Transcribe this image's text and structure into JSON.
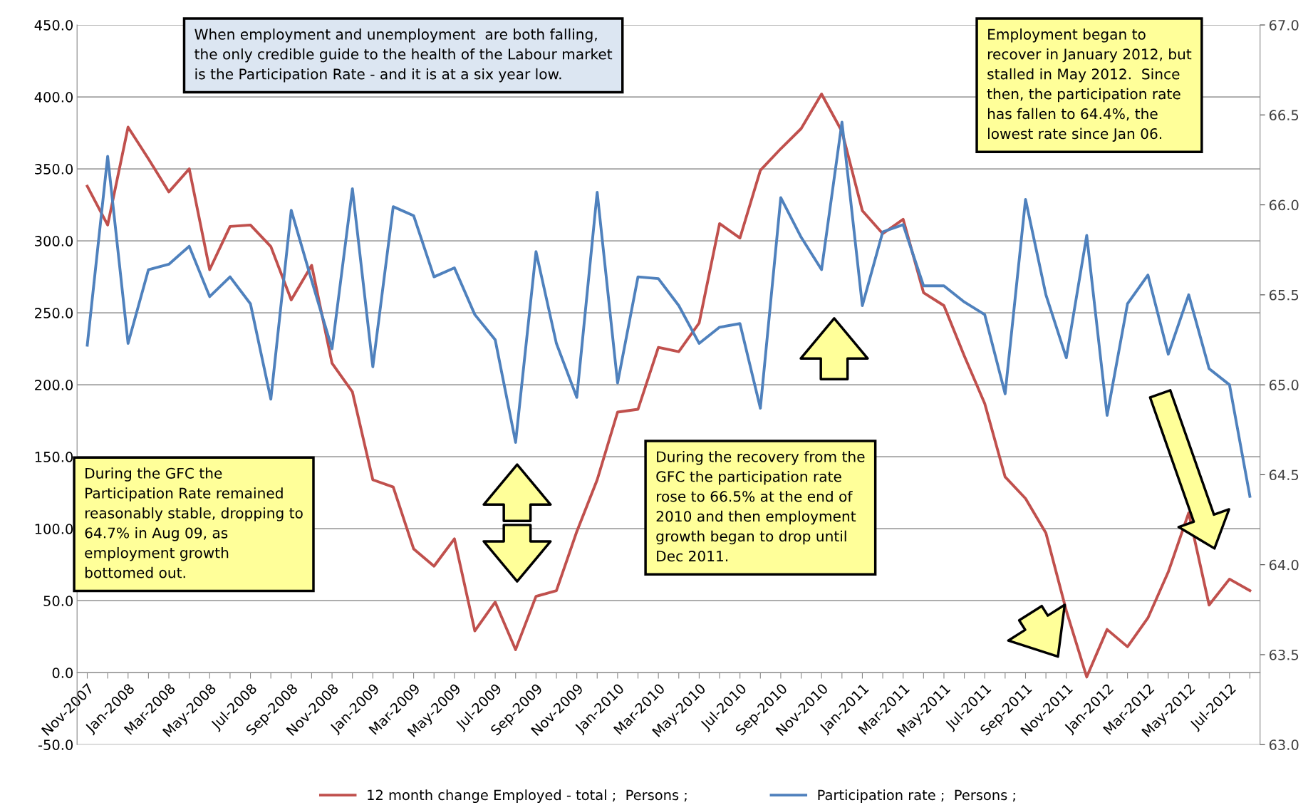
{
  "chart_data": {
    "type": "line",
    "categories": [
      "Nov-2007",
      null,
      "Jan-2008",
      null,
      "Mar-2008",
      null,
      "May-2008",
      null,
      "Jul-2008",
      null,
      "Sep-2008",
      null,
      "Nov-2008",
      null,
      "Jan-2009",
      null,
      "Mar-2009",
      null,
      "May-2009",
      null,
      "Jul-2009",
      null,
      "Sep-2009",
      null,
      "Nov-2009",
      null,
      "Jan-2010",
      null,
      "Mar-2010",
      null,
      "May-2010",
      null,
      "Jul-2010",
      null,
      "Sep-2010",
      null,
      "Nov-2010",
      null,
      "Jan-2011",
      null,
      "Mar-2011",
      null,
      "May-2011",
      null,
      "Jul-2011",
      null,
      "Sep-2011",
      null,
      "Nov-2011",
      null,
      "Jan-2012",
      null,
      "Mar-2012",
      null,
      "May-2012",
      null,
      "Jul-2012",
      null
    ],
    "series": [
      {
        "name": "12 month change Employed - total ;  Persons ;",
        "color": "#c0504d",
        "values": [
          338,
          311,
          379,
          357,
          334,
          350,
          280,
          310,
          311,
          296,
          259,
          283,
          215,
          195,
          134,
          129,
          86,
          74,
          93,
          29,
          49,
          16,
          53,
          57,
          98,
          134,
          181,
          183,
          226,
          223,
          243,
          312,
          302,
          349,
          364,
          378,
          402,
          376,
          321,
          305,
          315,
          264,
          255,
          220,
          187,
          136,
          121,
          97,
          43,
          -3,
          30,
          18,
          38,
          70,
          111,
          47,
          65,
          57
        ]
      },
      {
        "name": "Participation rate ;  Persons ;",
        "color": "#4f81bd",
        "axis": "y2",
        "values": [
          65.22,
          66.27,
          65.23,
          65.64,
          65.67,
          65.77,
          65.49,
          65.6,
          65.45,
          64.92,
          65.97,
          65.58,
          65.2,
          66.09,
          65.1,
          65.99,
          65.94,
          65.6,
          65.65,
          65.39,
          65.25,
          64.68,
          65.74,
          65.23,
          64.93,
          66.07,
          65.01,
          65.6,
          65.59,
          65.44,
          65.23,
          65.32,
          65.34,
          64.87,
          66.04,
          65.82,
          65.64,
          66.46,
          65.44,
          65.85,
          65.89,
          65.55,
          65.55,
          65.46,
          65.39,
          64.95,
          66.03,
          65.5,
          65.15,
          65.83,
          64.83,
          65.45,
          65.61,
          65.17,
          65.5,
          65.09,
          65.0,
          64.38
        ]
      }
    ],
    "ylim": [
      -50,
      450
    ],
    "yticks": [
      {
        "value": -50,
        "label": "-50.0"
      },
      {
        "value": 0,
        "label": "0.0"
      },
      {
        "value": 50,
        "label": "50.0"
      },
      {
        "value": 100,
        "label": "100.0"
      },
      {
        "value": 150,
        "label": "150.0"
      },
      {
        "value": 200,
        "label": "200.0"
      },
      {
        "value": 250,
        "label": "250.0"
      },
      {
        "value": 300,
        "label": "300.0"
      },
      {
        "value": 350,
        "label": "350.0"
      },
      {
        "value": 400,
        "label": "400.0"
      },
      {
        "value": 450,
        "label": "450.0"
      }
    ],
    "y2lim": [
      63,
      67
    ],
    "y2ticks": [
      {
        "value": 63,
        "label": "63.0"
      },
      {
        "value": 63.5,
        "label": "63.5"
      },
      {
        "value": 64,
        "label": "64.0"
      },
      {
        "value": 64.5,
        "label": "64.5"
      },
      {
        "value": 65,
        "label": "65.0"
      },
      {
        "value": 65.5,
        "label": "65.5"
      },
      {
        "value": 66,
        "label": "66.0"
      },
      {
        "value": 66.5,
        "label": "66.5"
      },
      {
        "value": 67,
        "label": "67.0"
      }
    ],
    "grid": "y",
    "legend": "bottom",
    "marker": "none",
    "line_style": "solid",
    "annotations": [
      "When employment and unemployment  are both falling,\nthe only credible guide to the health of the Labour market\nis the Participation Rate - and it is at a six year low.",
      "Employment began to\nrecover in January 2012, but\nstalled in May 2012.  Since\nthen, the participation rate\nhas fallen to 64.4%, the\nlowest rate since Jan 06.",
      "During the GFC the\nParticipation Rate remained\nreasonably stable, dropping to\n64.7% in Aug 09, as\nemployment growth\nbottomed out.",
      "During the recovery from the\nGFC the participation rate\nrose to 66.5% at the end of\n2010 and then employment\ngrowth began to drop until\nDec 2011."
    ]
  }
}
